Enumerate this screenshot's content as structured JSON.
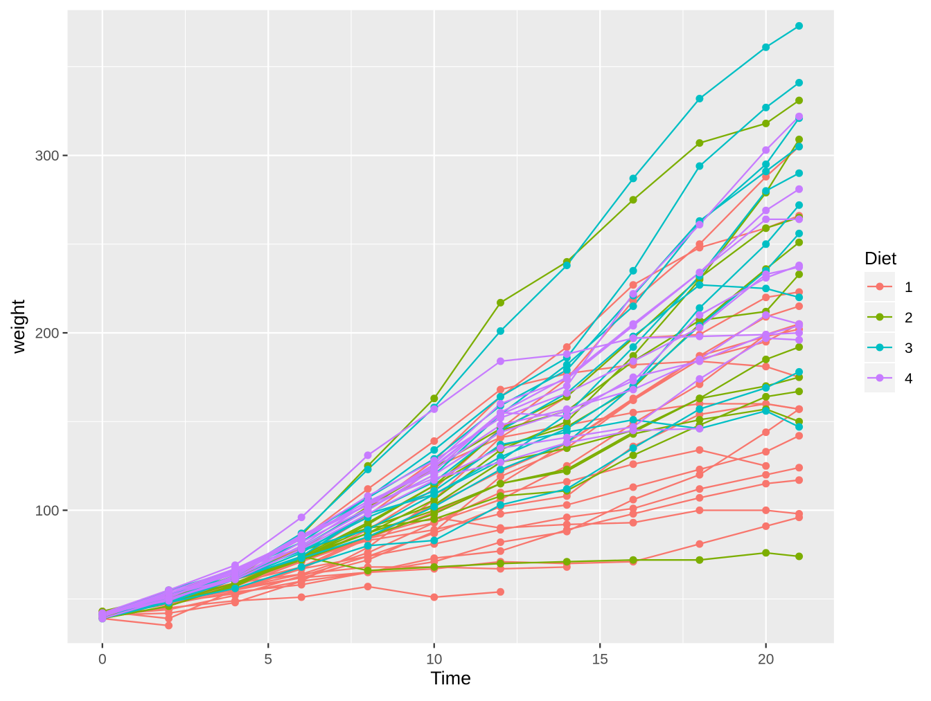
{
  "chart_data": {
    "type": "line",
    "title": "",
    "xlabel": "Time",
    "ylabel": "weight",
    "xlim": [
      -1.05,
      22.05
    ],
    "ylim": [
      25.1,
      381.9
    ],
    "x_ticks": [
      0,
      5,
      10,
      15,
      20
    ],
    "y_ticks": [
      100,
      200,
      300
    ],
    "grid": true,
    "legend": {
      "title": "Diet",
      "position": "right"
    },
    "colors": {
      "1": "#F8766D",
      "2": "#7CAE00",
      "3": "#00BFC4",
      "4": "#C77CFF"
    },
    "times": [
      0,
      2,
      4,
      6,
      8,
      10,
      12,
      14,
      16,
      18,
      20,
      21
    ],
    "series": [
      {
        "name": "1",
        "chick": "1",
        "values": [
          42,
          51,
          59,
          64,
          76,
          93,
          106,
          125,
          149,
          171,
          199,
          205
        ]
      },
      {
        "name": "1",
        "chick": "2",
        "values": [
          40,
          49,
          58,
          72,
          84,
          103,
          122,
          138,
          162,
          187,
          209,
          215
        ]
      },
      {
        "name": "1",
        "chick": "3",
        "values": [
          43,
          39,
          55,
          67,
          84,
          99,
          115,
          138,
          163,
          187,
          198,
          202
        ]
      },
      {
        "name": "1",
        "chick": "4",
        "values": [
          42,
          49,
          56,
          67,
          74,
          87,
          102,
          108,
          136,
          154,
          160,
          157
        ]
      },
      {
        "name": "1",
        "chick": "5",
        "values": [
          41,
          42,
          48,
          60,
          79,
          106,
          141,
          164,
          197,
          199,
          220,
          223
        ]
      },
      {
        "name": "1",
        "chick": "6",
        "values": [
          41,
          49,
          59,
          74,
          97,
          124,
          141,
          148,
          155,
          160,
          160,
          157
        ]
      },
      {
        "name": "1",
        "chick": "7",
        "values": [
          41,
          49,
          57,
          71,
          89,
          112,
          146,
          174,
          218,
          250,
          288,
          305
        ]
      },
      {
        "name": "1",
        "chick": "8",
        "values": [
          42,
          50,
          61,
          71,
          84,
          93,
          110,
          116,
          126,
          134,
          125,
          null
        ]
      },
      {
        "name": "1",
        "chick": "9",
        "values": [
          42,
          51,
          59,
          68,
          85,
          96,
          90,
          92,
          93,
          100,
          100,
          98
        ]
      },
      {
        "name": "1",
        "chick": "10",
        "values": [
          41,
          44,
          52,
          63,
          74,
          81,
          89,
          96,
          101,
          112,
          120,
          124
        ]
      },
      {
        "name": "1",
        "chick": "11",
        "values": [
          43,
          51,
          63,
          84,
          112,
          139,
          168,
          177,
          182,
          184,
          181,
          175
        ]
      },
      {
        "name": "1",
        "chick": "12",
        "values": [
          41,
          49,
          56,
          62,
          72,
          88,
          119,
          135,
          162,
          185,
          195,
          205
        ]
      },
      {
        "name": "1",
        "chick": "13",
        "values": [
          41,
          48,
          53,
          60,
          65,
          67,
          71,
          70,
          71,
          81,
          91,
          96
        ]
      },
      {
        "name": "1",
        "chick": "14",
        "values": [
          41,
          49,
          62,
          79,
          101,
          128,
          164,
          192,
          227,
          248,
          259,
          266
        ]
      },
      {
        "name": "1",
        "chick": "15",
        "values": [
          41,
          49,
          56,
          64,
          68,
          68,
          67,
          68,
          null,
          null,
          null,
          null
        ]
      },
      {
        "name": "1",
        "chick": "16",
        "values": [
          41,
          45,
          49,
          51,
          57,
          51,
          54,
          null,
          null,
          null,
          null,
          null
        ]
      },
      {
        "name": "1",
        "chick": "17",
        "values": [
          42,
          51,
          61,
          72,
          83,
          89,
          98,
          103,
          113,
          123,
          133,
          142
        ]
      },
      {
        "name": "1",
        "chick": "18",
        "values": [
          39,
          35,
          null,
          null,
          null,
          null,
          null,
          null,
          null,
          null,
          null,
          null
        ]
      },
      {
        "name": "1",
        "chick": "19",
        "values": [
          43,
          48,
          55,
          62,
          65,
          71,
          82,
          88,
          106,
          120,
          144,
          157
        ]
      },
      {
        "name": "1",
        "chick": "20",
        "values": [
          41,
          47,
          54,
          58,
          65,
          73,
          77,
          89,
          98,
          107,
          115,
          117
        ]
      },
      {
        "name": "2",
        "chick": "21",
        "values": [
          40,
          50,
          62,
          86,
          125,
          163,
          217,
          240,
          275,
          307,
          318,
          331
        ]
      },
      {
        "name": "2",
        "chick": "22",
        "values": [
          41,
          55,
          64,
          77,
          90,
          95,
          108,
          111,
          131,
          148,
          164,
          167
        ]
      },
      {
        "name": "2",
        "chick": "23",
        "values": [
          43,
          52,
          61,
          73,
          90,
          103,
          127,
          135,
          145,
          163,
          170,
          175
        ]
      },
      {
        "name": "2",
        "chick": "24",
        "values": [
          42,
          52,
          58,
          74,
          66,
          68,
          70,
          71,
          72,
          72,
          76,
          74
        ]
      },
      {
        "name": "2",
        "chick": "25",
        "values": [
          40,
          49,
          62,
          78,
          102,
          124,
          146,
          164,
          197,
          231,
          259,
          265
        ]
      },
      {
        "name": "2",
        "chick": "26",
        "values": [
          42,
          48,
          57,
          74,
          93,
          114,
          136,
          147,
          169,
          205,
          236,
          251
        ]
      },
      {
        "name": "2",
        "chick": "27",
        "values": [
          39,
          46,
          58,
          73,
          87,
          100,
          115,
          123,
          144,
          163,
          185,
          192
        ]
      },
      {
        "name": "2",
        "chick": "28",
        "values": [
          39,
          46,
          58,
          73,
          92,
          114,
          145,
          156,
          184,
          207,
          212,
          233
        ]
      },
      {
        "name": "2",
        "chick": "29",
        "values": [
          39,
          48,
          59,
          74,
          87,
          106,
          134,
          150,
          187,
          230,
          279,
          309
        ]
      },
      {
        "name": "2",
        "chick": "30",
        "values": [
          42,
          48,
          59,
          72,
          85,
          98,
          115,
          122,
          143,
          151,
          157,
          150
        ]
      },
      {
        "name": "3",
        "chick": "31",
        "values": [
          42,
          53,
          62,
          73,
          85,
          102,
          123,
          138,
          170,
          204,
          235,
          256
        ]
      },
      {
        "name": "3",
        "chick": "32",
        "values": [
          41,
          49,
          65,
          82,
          107,
          129,
          159,
          179,
          221,
          263,
          291,
          305
        ]
      },
      {
        "name": "3",
        "chick": "33",
        "values": [
          39,
          50,
          63,
          77,
          96,
          111,
          137,
          144,
          151,
          146,
          156,
          147
        ]
      },
      {
        "name": "3",
        "chick": "34",
        "values": [
          41,
          49,
          63,
          85,
          107,
          134,
          164,
          186,
          235,
          294,
          327,
          341
        ]
      },
      {
        "name": "3",
        "chick": "35",
        "values": [
          41,
          53,
          64,
          87,
          123,
          158,
          201,
          238,
          287,
          332,
          361,
          373
        ]
      },
      {
        "name": "3",
        "chick": "36",
        "values": [
          39,
          48,
          61,
          76,
          98,
          116,
          145,
          166,
          198,
          227,
          225,
          220
        ]
      },
      {
        "name": "3",
        "chick": "37",
        "values": [
          41,
          48,
          56,
          68,
          80,
          83,
          103,
          112,
          135,
          157,
          169,
          178
        ]
      },
      {
        "name": "3",
        "chick": "38",
        "values": [
          41,
          49,
          61,
          74,
          98,
          109,
          128,
          154,
          192,
          232,
          280,
          290
        ]
      },
      {
        "name": "3",
        "chick": "39",
        "values": [
          42,
          50,
          61,
          78,
          89,
          109,
          130,
          146,
          170,
          214,
          250,
          272
        ]
      },
      {
        "name": "3",
        "chick": "40",
        "values": [
          41,
          55,
          66,
          79,
          101,
          120,
          154,
          182,
          215,
          262,
          295,
          321
        ]
      },
      {
        "name": "4",
        "chick": "41",
        "values": [
          42,
          51,
          66,
          85,
          103,
          124,
          155,
          153,
          175,
          184,
          199,
          204
        ]
      },
      {
        "name": "4",
        "chick": "42",
        "values": [
          42,
          49,
          63,
          84,
          103,
          126,
          160,
          174,
          204,
          234,
          269,
          281
        ]
      },
      {
        "name": "4",
        "chick": "43",
        "values": [
          42,
          55,
          69,
          96,
          131,
          157,
          184,
          188,
          197,
          198,
          199,
          200
        ]
      },
      {
        "name": "4",
        "chick": "44",
        "values": [
          42,
          51,
          65,
          86,
          103,
          118,
          127,
          138,
          145,
          146,
          null,
          null
        ]
      },
      {
        "name": "4",
        "chick": "45",
        "values": [
          41,
          50,
          61,
          78,
          98,
          117,
          135,
          141,
          147,
          174,
          197,
          196
        ]
      },
      {
        "name": "4",
        "chick": "46",
        "values": [
          40,
          52,
          62,
          82,
          101,
          120,
          144,
          156,
          173,
          210,
          231,
          238
        ]
      },
      {
        "name": "4",
        "chick": "47",
        "values": [
          41,
          53,
          66,
          79,
          100,
          123,
          148,
          157,
          168,
          185,
          210,
          205
        ]
      },
      {
        "name": "4",
        "chick": "48",
        "values": [
          39,
          50,
          62,
          80,
          104,
          125,
          154,
          170,
          222,
          261,
          303,
          322
        ]
      },
      {
        "name": "4",
        "chick": "49",
        "values": [
          40,
          53,
          64,
          85,
          108,
          128,
          152,
          166,
          184,
          203,
          233,
          237
        ]
      },
      {
        "name": "4",
        "chick": "50",
        "values": [
          41,
          54,
          67,
          84,
          105,
          122,
          155,
          175,
          205,
          234,
          264,
          264
        ]
      }
    ]
  }
}
